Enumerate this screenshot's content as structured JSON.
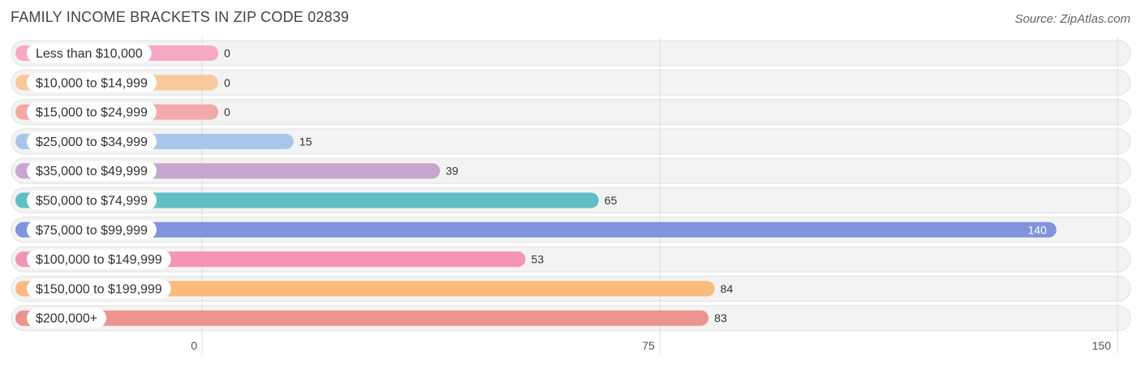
{
  "header": {
    "title": "FAMILY INCOME BRACKETS IN ZIP CODE 02839",
    "source": "Source: ZipAtlas.com"
  },
  "chart_data": {
    "type": "bar",
    "orientation": "horizontal",
    "title": "FAMILY INCOME BRACKETS IN ZIP CODE 02839",
    "xlabel": "",
    "ylabel": "",
    "xlim": [
      0,
      150
    ],
    "ticks": [
      0,
      75,
      150
    ],
    "tick_labels": [
      "0",
      "75",
      "150"
    ],
    "grid": true,
    "categories": [
      "Less than $10,000",
      "$10,000 to $14,999",
      "$15,000 to $24,999",
      "$25,000 to $34,999",
      "$35,000 to $49,999",
      "$50,000 to $74,999",
      "$75,000 to $99,999",
      "$100,000 to $149,999",
      "$150,000 to $199,999",
      "$200,000+"
    ],
    "values": [
      0,
      0,
      0,
      15,
      39,
      65,
      140,
      53,
      84,
      83
    ],
    "value_labels": [
      "0",
      "0",
      "0",
      "15",
      "39",
      "65",
      "140",
      "53",
      "84",
      "83"
    ],
    "colors": [
      "#f7a8c4",
      "#f9c99e",
      "#f2aaa8",
      "#a8c6ea",
      "#c7a6cf",
      "#5fbfc4",
      "#8094e0",
      "#f595b4",
      "#fbbb7e",
      "#ec9490"
    ]
  }
}
